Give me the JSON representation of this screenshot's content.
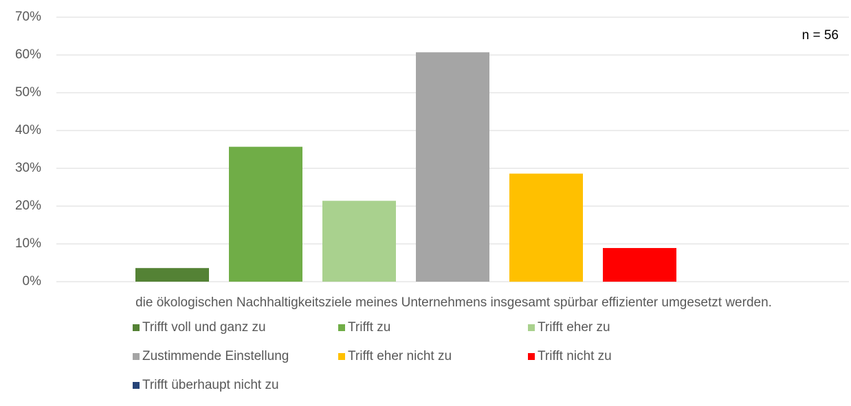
{
  "chart_data": {
    "type": "bar",
    "categories": [
      "die ökologischen Nachhaltigkeitsziele meines Unternehmens insgesamt spürbar effizienter umgesetzt werden."
    ],
    "series": [
      {
        "name": "Trifft voll und ganz zu",
        "color": "#548235",
        "values": [
          3.6
        ]
      },
      {
        "name": "Trifft zu",
        "color": "#70ad47",
        "values": [
          35.7
        ]
      },
      {
        "name": "Trifft eher zu",
        "color": "#a9d18e",
        "values": [
          21.4
        ]
      },
      {
        "name": "Zustimmende Einstellung",
        "color": "#a5a5a5",
        "values": [
          60.7
        ]
      },
      {
        "name": "Trifft eher nicht zu",
        "color": "#ffc000",
        "values": [
          28.6
        ]
      },
      {
        "name": "Trifft nicht zu",
        "color": "#ff0000",
        "values": [
          8.9
        ]
      },
      {
        "name": "Trifft überhaupt nicht zu",
        "color": "#264478",
        "values": [
          0
        ]
      }
    ],
    "annotation": "n = 56",
    "ylim": [
      0,
      70
    ],
    "yticks": [
      {
        "value": 0,
        "label": "0%"
      },
      {
        "value": 10,
        "label": "10%"
      },
      {
        "value": 20,
        "label": "20%"
      },
      {
        "value": 30,
        "label": "30%"
      },
      {
        "value": 40,
        "label": "40%"
      },
      {
        "value": 50,
        "label": "50%"
      },
      {
        "value": 60,
        "label": "60%"
      },
      {
        "value": 70,
        "label": "70%"
      }
    ],
    "grid": true,
    "legend": "bottom"
  }
}
